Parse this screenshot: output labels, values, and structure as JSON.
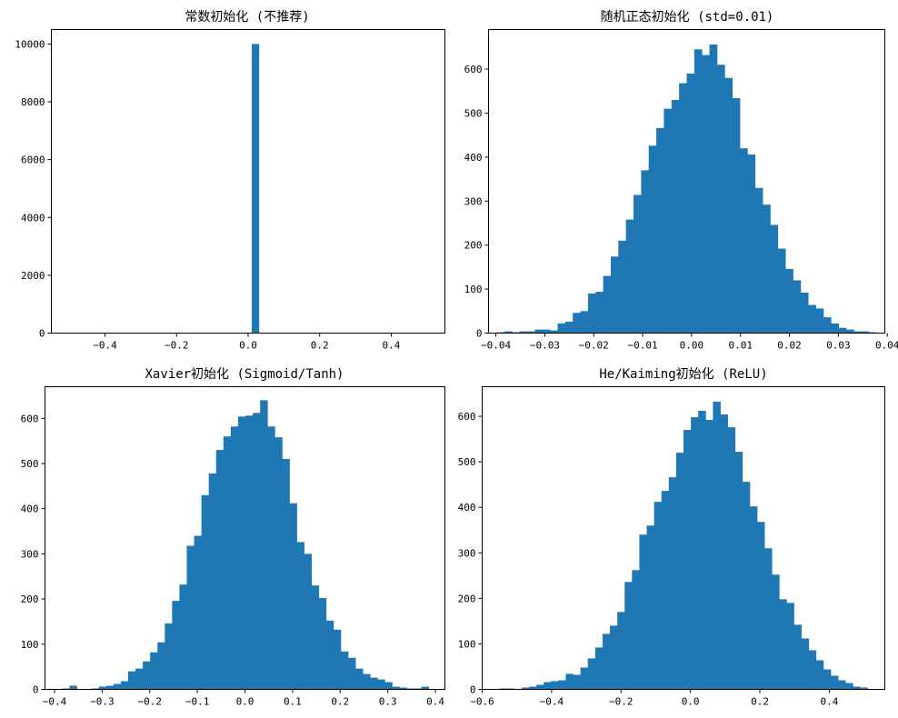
{
  "chart_data": [
    {
      "type": "bar",
      "title": "常数初始化 (不推荐)",
      "xlabel": "",
      "ylabel": "",
      "xlim": [
        -0.55,
        0.55
      ],
      "ylim": [
        0,
        10500
      ],
      "xticks": [
        -0.4,
        -0.2,
        0.0,
        0.2,
        0.4
      ],
      "xtick_labels": [
        "−0.4",
        "−0.2",
        "0.0",
        "0.2",
        "0.4"
      ],
      "yticks": [
        0,
        2000,
        4000,
        6000,
        8000,
        10000
      ],
      "ytick_labels": [
        "0",
        "2000",
        "4000",
        "6000",
        "8000",
        "10000"
      ],
      "bin_edges": [
        -0.49,
        0.51
      ],
      "bins": 50,
      "values": [
        0,
        0,
        0,
        0,
        0,
        0,
        0,
        0,
        0,
        0,
        0,
        0,
        0,
        0,
        0,
        0,
        0,
        0,
        0,
        0,
        0,
        0,
        0,
        0,
        0,
        10000,
        0,
        0,
        0,
        0,
        0,
        0,
        0,
        0,
        0,
        0,
        0,
        0,
        0,
        0,
        0,
        0,
        0,
        0,
        0,
        0,
        0,
        0,
        0,
        0
      ]
    },
    {
      "type": "bar",
      "title": "随机正态初始化 (std=0.01)",
      "xlabel": "",
      "ylabel": "",
      "xlim": [
        -0.0415,
        0.0395
      ],
      "ylim": [
        0,
        690
      ],
      "xticks": [
        -0.04,
        -0.03,
        -0.02,
        -0.01,
        0.0,
        0.01,
        0.02,
        0.03,
        0.04
      ],
      "xtick_labels": [
        "−0.04",
        "−0.03",
        "−0.02",
        "−0.01",
        "0.00",
        "0.01",
        "0.02",
        "0.03",
        "0.04"
      ],
      "yticks": [
        0,
        100,
        200,
        300,
        400,
        500,
        600
      ],
      "ytick_labels": [
        "0",
        "100",
        "200",
        "300",
        "400",
        "500",
        "600"
      ],
      "bin_edges": [
        -0.0398,
        0.0378
      ],
      "bins": 50,
      "values": [
        2,
        4,
        2,
        4,
        4,
        8,
        8,
        6,
        22,
        26,
        46,
        50,
        90,
        94,
        130,
        174,
        210,
        258,
        314,
        370,
        426,
        466,
        510,
        530,
        568,
        590,
        645,
        632,
        656,
        610,
        580,
        534,
        420,
        406,
        330,
        292,
        246,
        192,
        146,
        120,
        92,
        64,
        56,
        36,
        22,
        12,
        8,
        4,
        4,
        2
      ]
    },
    {
      "type": "bar",
      "title": "Xavier初始化 (Sigmoid/Tanh)",
      "xlabel": "",
      "ylabel": "",
      "xlim": [
        -0.42,
        0.42
      ],
      "ylim": [
        0,
        670
      ],
      "xticks": [
        -0.4,
        -0.3,
        -0.2,
        -0.1,
        0.0,
        0.1,
        0.2,
        0.3,
        0.4
      ],
      "xtick_labels": [
        "−0.4",
        "−0.3",
        "−0.2",
        "−0.1",
        "0.0",
        "0.1",
        "0.2",
        "0.3",
        "0.4"
      ],
      "yticks": [
        0,
        100,
        200,
        300,
        400,
        500,
        600
      ],
      "ytick_labels": [
        "0",
        "100",
        "200",
        "300",
        "400",
        "500",
        "600"
      ],
      "bin_edges": [
        -0.384,
        0.386
      ],
      "bins": 50,
      "values": [
        2,
        8,
        0,
        0,
        2,
        6,
        8,
        12,
        18,
        40,
        46,
        62,
        82,
        104,
        146,
        196,
        232,
        318,
        340,
        430,
        478,
        530,
        560,
        582,
        604,
        606,
        612,
        640,
        582,
        558,
        510,
        412,
        326,
        300,
        230,
        202,
        152,
        132,
        84,
        70,
        46,
        34,
        26,
        22,
        16,
        6,
        4,
        2,
        2,
        6
      ]
    },
    {
      "type": "bar",
      "title": "He/Kaiming初始化 (ReLU)",
      "xlabel": "",
      "ylabel": "",
      "xlim": [
        -0.6,
        0.56
      ],
      "ylim": [
        0,
        665
      ],
      "xticks": [
        -0.6,
        -0.4,
        -0.2,
        0.0,
        0.2,
        0.4
      ],
      "xtick_labels": [
        "−0.6",
        "−0.4",
        "−0.2",
        "0.0",
        "0.2",
        "0.4"
      ],
      "yticks": [
        0,
        100,
        200,
        300,
        400,
        500,
        600
      ],
      "ytick_labels": [
        "0",
        "100",
        "200",
        "300",
        "400",
        "500",
        "600"
      ],
      "bin_edges": [
        -0.55,
        0.51
      ],
      "bins": 50,
      "values": [
        2,
        2,
        0,
        4,
        6,
        10,
        16,
        18,
        20,
        34,
        32,
        48,
        68,
        92,
        122,
        140,
        170,
        236,
        262,
        340,
        360,
        412,
        436,
        466,
        520,
        570,
        598,
        612,
        592,
        632,
        604,
        576,
        522,
        456,
        402,
        368,
        310,
        252,
        198,
        190,
        142,
        112,
        86,
        64,
        44,
        30,
        20,
        14,
        6,
        4
      ]
    }
  ]
}
